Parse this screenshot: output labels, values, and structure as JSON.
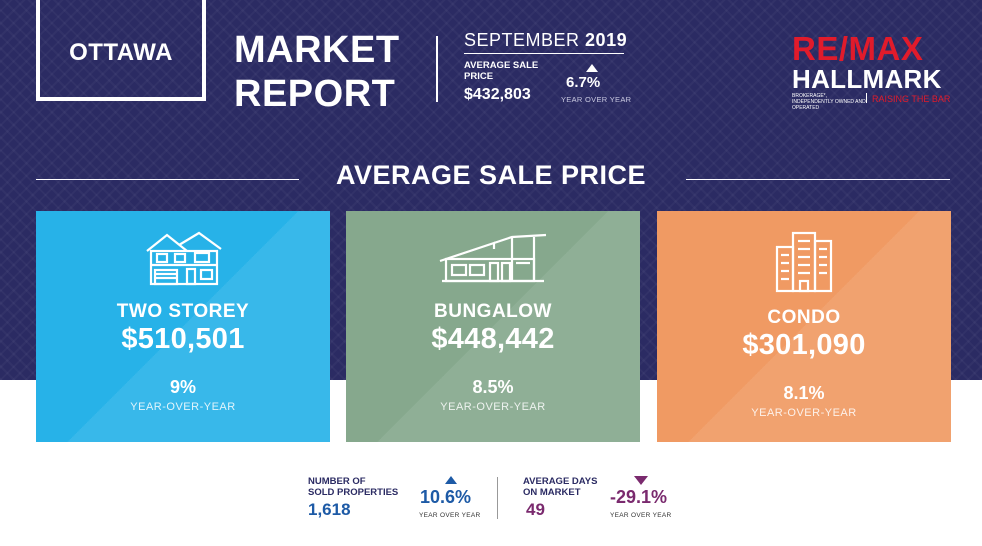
{
  "header": {
    "city": "OTTAWA",
    "title_line1": "MARKET",
    "title_line2": "REPORT",
    "month": "SEPTEMBER",
    "year": "2019",
    "avg_label": "AVERAGE SALE PRICE",
    "avg_value": "$432,803",
    "change": "6.7%",
    "change_direction": "up",
    "change_label": "YEAR OVER YEAR"
  },
  "logo": {
    "brand": "RE/MAX",
    "brand_sub": "HALLMARK",
    "fineprint": "BROKERAGE*, INDEPENDENTLY OWNED AND OPERATED",
    "tagline": "RAISING THE BAR",
    "brand_color": "#e11b2b"
  },
  "section": {
    "title": "AVERAGE SALE PRICE"
  },
  "cards": [
    {
      "type": "TWO STOREY",
      "price": "$510,501",
      "change": "9%",
      "change_label": "YEAR-OVER-YEAR",
      "icon": "two-storey-house-icon",
      "color": "#27b2e8"
    },
    {
      "type": "BUNGALOW",
      "price": "$448,442",
      "change": "8.5%",
      "change_label": "YEAR-OVER-YEAR",
      "icon": "bungalow-icon",
      "color": "#86a88d"
    },
    {
      "type": "CONDO",
      "price": "$301,090",
      "change": "8.1%",
      "change_label": "YEAR-OVER-YEAR",
      "icon": "condo-building-icon",
      "color": "#f09a63"
    }
  ],
  "stats": [
    {
      "label_line1": "NUMBER OF",
      "label_line2": "SOLD PROPERTIES",
      "value": "1,618",
      "change": "10.6%",
      "change_direction": "up",
      "change_label": "YEAR OVER YEAR",
      "value_color": "#1d5aa6"
    },
    {
      "label_line1": "AVERAGE DAYS",
      "label_line2": "ON MARKET",
      "value": "49",
      "change": "-29.1%",
      "change_direction": "down",
      "change_label": "YEAR OVER YEAR",
      "value_color": "#7a2a6e"
    }
  ]
}
